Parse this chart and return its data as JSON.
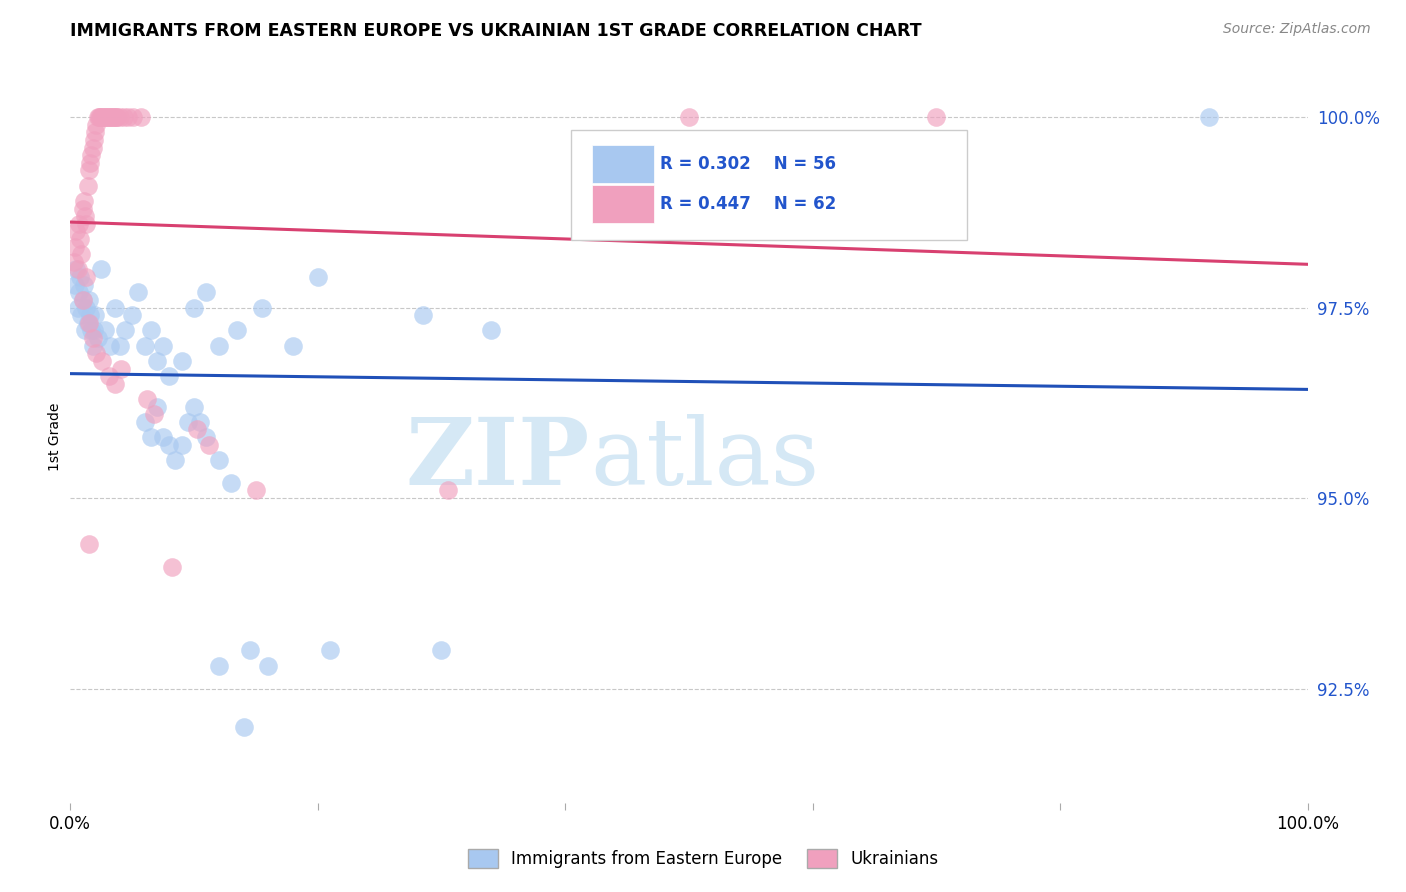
{
  "title": "IMMIGRANTS FROM EASTERN EUROPE VS UKRAINIAN 1ST GRADE CORRELATION CHART",
  "source": "Source: ZipAtlas.com",
  "ylabel": "1st Grade",
  "xlim": [
    0.0,
    1.0
  ],
  "ylim": [
    0.91,
    1.006
  ],
  "ytick_vals": [
    0.925,
    0.95,
    0.975,
    1.0
  ],
  "ytick_labels": [
    "92.5%",
    "95.0%",
    "97.5%",
    "100.0%"
  ],
  "xtick_vals": [
    0.0,
    0.2,
    0.4,
    0.6,
    0.8,
    1.0
  ],
  "xtick_labels": [
    "0.0%",
    "",
    "",
    "",
    "",
    "100.0%"
  ],
  "blue_color": "#a8c8f0",
  "pink_color": "#f0a0be",
  "blue_line_color": "#2050b8",
  "pink_line_color": "#d84070",
  "legend_text_color": "#2255cc",
  "watermark_color": "#d5e8f5",
  "blue_scatter": [
    [
      0.004,
      0.978
    ],
    [
      0.005,
      0.98
    ],
    [
      0.006,
      0.975
    ],
    [
      0.007,
      0.977
    ],
    [
      0.008,
      0.979
    ],
    [
      0.009,
      0.974
    ],
    [
      0.01,
      0.976
    ],
    [
      0.011,
      0.978
    ],
    [
      0.012,
      0.972
    ],
    [
      0.013,
      0.975
    ],
    [
      0.014,
      0.973
    ],
    [
      0.015,
      0.976
    ],
    [
      0.016,
      0.974
    ],
    [
      0.017,
      0.972
    ],
    [
      0.018,
      0.97
    ],
    [
      0.019,
      0.972
    ],
    [
      0.02,
      0.974
    ],
    [
      0.022,
      0.971
    ],
    [
      0.025,
      0.98
    ],
    [
      0.028,
      0.972
    ],
    [
      0.032,
      0.97
    ],
    [
      0.036,
      0.975
    ],
    [
      0.04,
      0.97
    ],
    [
      0.044,
      0.972
    ],
    [
      0.05,
      0.974
    ],
    [
      0.055,
      0.977
    ],
    [
      0.06,
      0.97
    ],
    [
      0.065,
      0.972
    ],
    [
      0.07,
      0.968
    ],
    [
      0.075,
      0.97
    ],
    [
      0.08,
      0.966
    ],
    [
      0.09,
      0.968
    ],
    [
      0.1,
      0.975
    ],
    [
      0.11,
      0.977
    ],
    [
      0.12,
      0.97
    ],
    [
      0.135,
      0.972
    ],
    [
      0.155,
      0.975
    ],
    [
      0.18,
      0.97
    ],
    [
      0.2,
      0.979
    ],
    [
      0.285,
      0.974
    ],
    [
      0.34,
      0.972
    ],
    [
      0.06,
      0.96
    ],
    [
      0.065,
      0.958
    ],
    [
      0.07,
      0.962
    ],
    [
      0.075,
      0.958
    ],
    [
      0.08,
      0.957
    ],
    [
      0.085,
      0.955
    ],
    [
      0.09,
      0.957
    ],
    [
      0.095,
      0.96
    ],
    [
      0.1,
      0.962
    ],
    [
      0.105,
      0.96
    ],
    [
      0.11,
      0.958
    ],
    [
      0.12,
      0.955
    ],
    [
      0.13,
      0.952
    ],
    [
      0.145,
      0.93
    ],
    [
      0.16,
      0.928
    ],
    [
      0.21,
      0.93
    ],
    [
      0.3,
      0.93
    ],
    [
      0.12,
      0.928
    ],
    [
      0.14,
      0.92
    ],
    [
      0.92,
      1.0
    ]
  ],
  "pink_scatter": [
    [
      0.003,
      0.981
    ],
    [
      0.004,
      0.983
    ],
    [
      0.005,
      0.985
    ],
    [
      0.006,
      0.98
    ],
    [
      0.007,
      0.986
    ],
    [
      0.008,
      0.984
    ],
    [
      0.009,
      0.982
    ],
    [
      0.01,
      0.988
    ],
    [
      0.011,
      0.989
    ],
    [
      0.012,
      0.987
    ],
    [
      0.013,
      0.986
    ],
    [
      0.014,
      0.991
    ],
    [
      0.015,
      0.993
    ],
    [
      0.016,
      0.994
    ],
    [
      0.017,
      0.995
    ],
    [
      0.018,
      0.996
    ],
    [
      0.019,
      0.997
    ],
    [
      0.02,
      0.998
    ],
    [
      0.021,
      0.999
    ],
    [
      0.022,
      1.0
    ],
    [
      0.023,
      1.0
    ],
    [
      0.024,
      1.0
    ],
    [
      0.025,
      1.0
    ],
    [
      0.026,
      1.0
    ],
    [
      0.027,
      1.0
    ],
    [
      0.028,
      1.0
    ],
    [
      0.029,
      1.0
    ],
    [
      0.03,
      1.0
    ],
    [
      0.031,
      1.0
    ],
    [
      0.032,
      1.0
    ],
    [
      0.033,
      1.0
    ],
    [
      0.034,
      1.0
    ],
    [
      0.035,
      1.0
    ],
    [
      0.036,
      1.0
    ],
    [
      0.037,
      1.0
    ],
    [
      0.038,
      1.0
    ],
    [
      0.04,
      1.0
    ],
    [
      0.043,
      1.0
    ],
    [
      0.047,
      1.0
    ],
    [
      0.051,
      1.0
    ],
    [
      0.057,
      1.0
    ],
    [
      0.5,
      1.0
    ],
    [
      0.7,
      1.0
    ],
    [
      0.01,
      0.976
    ],
    [
      0.013,
      0.979
    ],
    [
      0.015,
      0.973
    ],
    [
      0.018,
      0.971
    ],
    [
      0.021,
      0.969
    ],
    [
      0.026,
      0.968
    ],
    [
      0.031,
      0.966
    ],
    [
      0.036,
      0.965
    ],
    [
      0.041,
      0.967
    ],
    [
      0.062,
      0.963
    ],
    [
      0.068,
      0.961
    ],
    [
      0.102,
      0.959
    ],
    [
      0.112,
      0.957
    ],
    [
      0.015,
      0.944
    ],
    [
      0.082,
      0.941
    ],
    [
      0.15,
      0.951
    ],
    [
      0.305,
      0.951
    ]
  ]
}
